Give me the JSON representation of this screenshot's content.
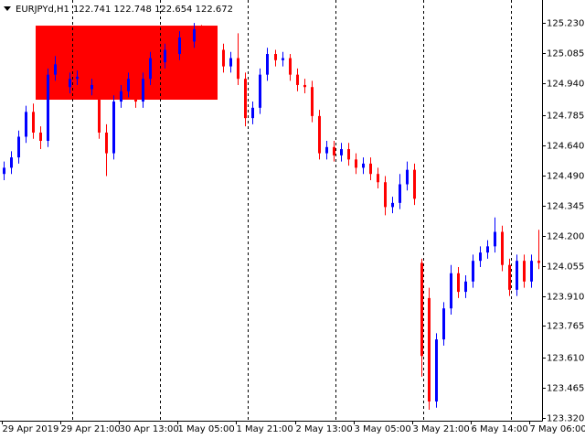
{
  "chart_data": {
    "type": "candlestick",
    "symbol": "EURJPYd,H1",
    "ohlc_text": "122.741 122.748 122.654 122.672",
    "up_color": "#0000ff",
    "down_color": "#ff0000",
    "categories": [
      "29 Apr 2019",
      null,
      null,
      null,
      null,
      null,
      null,
      null,
      "29 Apr 21:00",
      null,
      null,
      null,
      null,
      null,
      null,
      null,
      "30 Apr 13:00",
      null,
      null,
      null,
      null,
      null,
      null,
      null,
      "1 May 05:00",
      null,
      null,
      null,
      null,
      null,
      null,
      null,
      "1 May 21:00",
      null,
      null,
      null,
      null,
      null,
      null,
      null,
      "2 May 13:00",
      null,
      null,
      null,
      null,
      null,
      null,
      null,
      "3 May 05:00",
      null,
      null,
      null,
      null,
      null,
      null,
      null,
      "3 May 21:00",
      null,
      null,
      null,
      null,
      null,
      null,
      null,
      "6 May 14:00",
      null,
      null,
      null,
      null,
      null,
      null,
      null,
      "7 May 06:00",
      null
    ],
    "open": [
      124.5,
      124.53,
      124.58,
      124.68,
      124.8,
      124.7,
      124.66,
      124.98,
      125.03,
      124.92,
      124.96,
      124.97,
      124.91,
      124.93,
      124.7,
      124.6,
      124.85,
      124.9,
      124.96,
      124.85,
      124.96,
      125.06,
      125.04,
      125.1,
      125.08,
      125.16,
      125.14,
      125.2,
      125.16,
      125.12,
      125.1,
      125.02,
      125.06,
      124.96,
      124.77,
      124.82,
      124.98,
      125.08,
      125.05,
      125.06,
      124.98,
      124.93,
      124.92,
      124.78,
      124.6,
      124.63,
      124.59,
      124.62,
      124.57,
      124.53,
      124.55,
      124.5,
      124.46,
      124.34,
      124.36,
      124.45,
      124.52,
      124.07,
      123.9,
      123.4,
      123.7,
      123.85,
      124.02,
      123.93,
      123.98,
      124.08,
      124.12,
      124.15,
      124.22,
      124.06,
      123.94,
      124.08,
      123.98,
      124.08
    ],
    "high": [
      124.56,
      124.61,
      124.71,
      124.83,
      124.84,
      124.73,
      125.01,
      125.07,
      125.06,
      124.99,
      125.0,
      125.0,
      124.96,
      124.96,
      124.74,
      124.88,
      124.93,
      124.99,
      124.99,
      124.99,
      125.09,
      125.09,
      125.13,
      125.13,
      125.19,
      125.19,
      125.23,
      125.22,
      125.18,
      125.15,
      125.13,
      125.09,
      125.18,
      124.99,
      124.85,
      125.01,
      125.11,
      125.1,
      125.09,
      125.08,
      125.01,
      124.96,
      124.95,
      124.81,
      124.66,
      124.66,
      124.65,
      124.65,
      124.6,
      124.58,
      124.58,
      124.53,
      124.49,
      124.39,
      124.5,
      124.56,
      124.55,
      124.09,
      123.95,
      123.73,
      123.88,
      124.06,
      124.05,
      124.01,
      124.11,
      124.15,
      124.18,
      124.29,
      124.25,
      124.09,
      124.11,
      124.11,
      124.11,
      124.23
    ],
    "low": [
      124.47,
      124.5,
      124.55,
      124.65,
      124.67,
      124.62,
      124.63,
      124.95,
      124.89,
      124.89,
      124.93,
      124.88,
      124.88,
      124.67,
      124.49,
      124.57,
      124.82,
      124.87,
      124.82,
      124.82,
      124.93,
      125.01,
      125.01,
      125.05,
      125.05,
      125.11,
      125.11,
      125.13,
      125.09,
      125.07,
      124.99,
      124.99,
      124.93,
      124.73,
      124.74,
      124.79,
      124.95,
      125.02,
      125.02,
      124.95,
      124.9,
      124.89,
      124.75,
      124.57,
      124.57,
      124.56,
      124.56,
      124.54,
      124.5,
      124.5,
      124.47,
      124.43,
      124.3,
      124.31,
      124.33,
      124.42,
      124.35,
      123.52,
      123.36,
      123.37,
      123.67,
      123.82,
      123.9,
      123.9,
      123.95,
      124.05,
      124.09,
      124.12,
      124.03,
      123.91,
      123.91,
      123.95,
      123.95,
      124.04
    ],
    "close": [
      124.53,
      124.58,
      124.68,
      124.8,
      124.7,
      124.66,
      124.98,
      125.03,
      124.92,
      124.96,
      124.97,
      124.91,
      124.93,
      124.7,
      124.6,
      124.85,
      124.9,
      124.96,
      124.85,
      124.96,
      125.06,
      125.04,
      125.1,
      125.08,
      125.16,
      125.14,
      125.2,
      125.16,
      125.12,
      125.1,
      125.02,
      125.06,
      124.96,
      124.77,
      124.82,
      124.98,
      125.08,
      125.05,
      125.06,
      124.98,
      124.93,
      124.92,
      124.78,
      124.6,
      124.63,
      124.59,
      124.62,
      124.57,
      124.53,
      124.55,
      124.5,
      124.46,
      124.34,
      124.36,
      124.45,
      124.52,
      124.38,
      123.62,
      123.4,
      123.7,
      123.85,
      124.02,
      123.93,
      123.98,
      124.08,
      124.12,
      124.15,
      124.22,
      124.06,
      123.94,
      124.08,
      123.98,
      124.08,
      124.07
    ],
    "rectangle": {
      "top": 125.217,
      "bottom": 124.859,
      "color": "#ff0000"
    },
    "ylim": [
      123.307,
      125.341
    ],
    "yticks": [
      {
        "value": 125.23,
        "label": "125.230"
      },
      {
        "value": 125.085,
        "label": "125.085"
      },
      {
        "value": 124.94,
        "label": "124.940"
      },
      {
        "value": 124.785,
        "label": "124.785"
      },
      {
        "value": 124.64,
        "label": "124.640"
      },
      {
        "value": 124.49,
        "label": "124.490"
      },
      {
        "value": 124.345,
        "label": "124.345"
      },
      {
        "value": 124.2,
        "label": "124.200"
      },
      {
        "value": 124.055,
        "label": "124.055"
      },
      {
        "value": 123.91,
        "label": "123.910"
      },
      {
        "value": 123.765,
        "label": "123.765"
      },
      {
        "value": 123.61,
        "label": "123.610"
      },
      {
        "value": 123.465,
        "label": "123.465"
      },
      {
        "value": 123.32,
        "label": "123.320"
      }
    ]
  }
}
